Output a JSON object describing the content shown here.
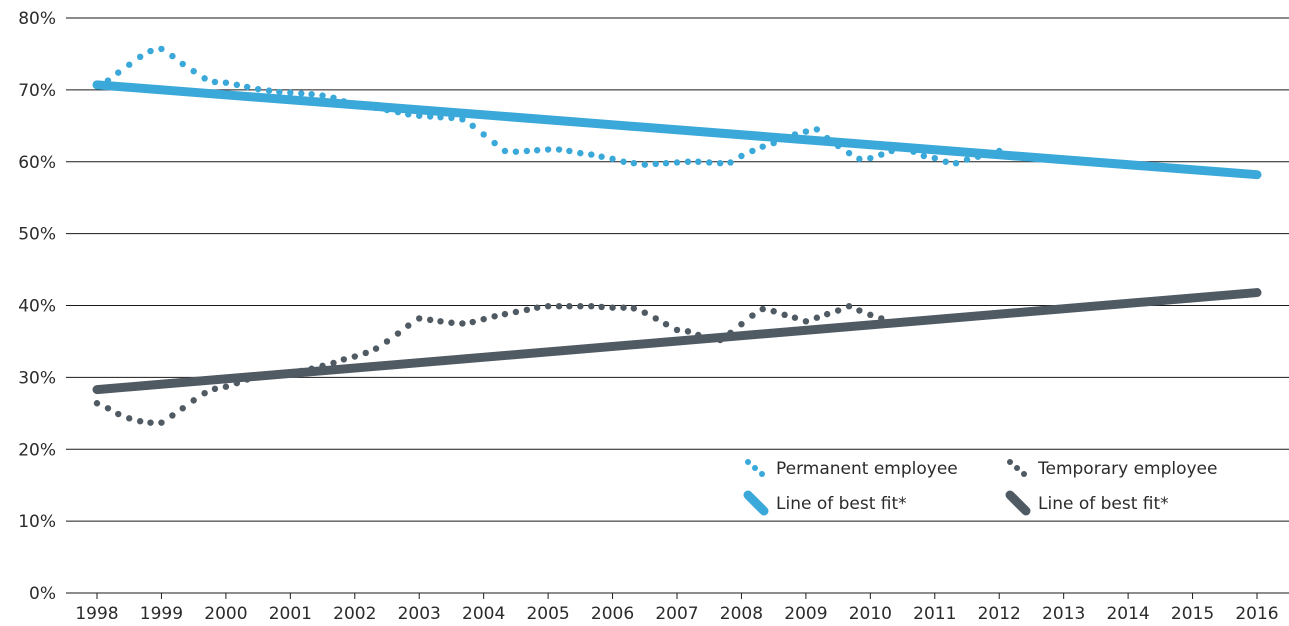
{
  "chart_data": {
    "type": "line",
    "title": "",
    "xlabel": "",
    "ylabel": "",
    "x_ticks": [
      "1998",
      "1999",
      "2000",
      "2001",
      "2002",
      "2003",
      "2004",
      "2005",
      "2006",
      "2007",
      "2008",
      "2009",
      "2010",
      "2011",
      "2012",
      "2013",
      "2014",
      "2015",
      "2016"
    ],
    "y_ticks": [
      "0%",
      "10%",
      "20%",
      "30%",
      "40%",
      "50%",
      "60%",
      "70%",
      "80%"
    ],
    "xlim": [
      1998,
      2016
    ],
    "ylim": [
      0,
      80
    ],
    "grid": "horizontal",
    "legend_position": "bottom-right",
    "colors": {
      "permanent": "#3aa8d8",
      "temporary": "#505a63",
      "grid": "#1a1a1a"
    },
    "series": [
      {
        "name": "Permanent employee",
        "style": "dotted",
        "color": "#3aa8d8",
        "points": [
          [
            1998.0,
            70.6
          ],
          [
            1998.17,
            71.3
          ],
          [
            1998.33,
            72.4
          ],
          [
            1998.5,
            73.5
          ],
          [
            1998.67,
            74.6
          ],
          [
            1998.83,
            75.4
          ],
          [
            1999.0,
            75.7
          ],
          [
            1999.17,
            74.7
          ],
          [
            1999.33,
            73.6
          ],
          [
            1999.5,
            72.6
          ],
          [
            1999.67,
            71.6
          ],
          [
            1999.83,
            71.1
          ],
          [
            2000.0,
            71.0
          ],
          [
            2000.17,
            70.7
          ],
          [
            2000.33,
            70.4
          ],
          [
            2000.5,
            70.1
          ],
          [
            2000.67,
            69.9
          ],
          [
            2000.83,
            69.7
          ],
          [
            2001.0,
            69.6
          ],
          [
            2001.17,
            69.5
          ],
          [
            2001.33,
            69.4
          ],
          [
            2001.5,
            69.2
          ],
          [
            2001.67,
            68.9
          ],
          [
            2001.83,
            68.4
          ],
          [
            2002.0,
            68.1
          ],
          [
            2002.17,
            67.8
          ],
          [
            2002.33,
            67.5
          ],
          [
            2002.5,
            67.2
          ],
          [
            2002.67,
            66.9
          ],
          [
            2002.83,
            66.6
          ],
          [
            2003.0,
            66.4
          ],
          [
            2003.17,
            66.3
          ],
          [
            2003.33,
            66.2
          ],
          [
            2003.5,
            66.1
          ],
          [
            2003.67,
            65.9
          ],
          [
            2003.83,
            65.0
          ],
          [
            2004.0,
            63.8
          ],
          [
            2004.17,
            62.6
          ],
          [
            2004.33,
            61.5
          ],
          [
            2004.5,
            61.4
          ],
          [
            2004.67,
            61.5
          ],
          [
            2004.83,
            61.6
          ],
          [
            2005.0,
            61.7
          ],
          [
            2005.17,
            61.7
          ],
          [
            2005.33,
            61.5
          ],
          [
            2005.5,
            61.2
          ],
          [
            2005.67,
            61.0
          ],
          [
            2005.83,
            60.7
          ],
          [
            2006.0,
            60.4
          ],
          [
            2006.17,
            60.0
          ],
          [
            2006.33,
            59.8
          ],
          [
            2006.5,
            59.6
          ],
          [
            2006.67,
            59.7
          ],
          [
            2006.83,
            59.8
          ],
          [
            2007.0,
            59.9
          ],
          [
            2007.17,
            60.0
          ],
          [
            2007.33,
            60.0
          ],
          [
            2007.5,
            59.9
          ],
          [
            2007.67,
            59.8
          ],
          [
            2007.83,
            59.9
          ],
          [
            2008.0,
            60.8
          ],
          [
            2008.17,
            61.5
          ],
          [
            2008.33,
            62.1
          ],
          [
            2008.5,
            62.6
          ],
          [
            2008.67,
            63.2
          ],
          [
            2008.83,
            63.8
          ],
          [
            2009.0,
            64.2
          ],
          [
            2009.17,
            64.5
          ],
          [
            2009.33,
            63.3
          ],
          [
            2009.5,
            62.2
          ],
          [
            2009.67,
            61.2
          ],
          [
            2009.83,
            60.4
          ],
          [
            2010.0,
            60.5
          ],
          [
            2010.17,
            61.0
          ],
          [
            2010.33,
            61.5
          ],
          [
            2010.5,
            62.0
          ],
          [
            2010.67,
            61.4
          ],
          [
            2010.83,
            60.8
          ],
          [
            2011.0,
            60.5
          ],
          [
            2011.17,
            60.0
          ],
          [
            2011.33,
            59.8
          ],
          [
            2011.5,
            60.3
          ],
          [
            2011.67,
            60.7
          ],
          [
            2011.83,
            61.2
          ],
          [
            2012.0,
            61.5
          ]
        ]
      },
      {
        "name": "Temporary employee",
        "style": "dotted",
        "color": "#505a63",
        "points": [
          [
            1998.0,
            26.4
          ],
          [
            1998.17,
            25.7
          ],
          [
            1998.33,
            24.9
          ],
          [
            1998.5,
            24.3
          ],
          [
            1998.67,
            23.9
          ],
          [
            1998.83,
            23.7
          ],
          [
            1999.0,
            23.7
          ],
          [
            1999.17,
            24.7
          ],
          [
            1999.33,
            25.7
          ],
          [
            1999.5,
            26.8
          ],
          [
            1999.67,
            27.8
          ],
          [
            1999.83,
            28.4
          ],
          [
            2000.0,
            28.7
          ],
          [
            2000.17,
            29.2
          ],
          [
            2000.33,
            29.7
          ],
          [
            2000.5,
            30.0
          ],
          [
            2000.67,
            30.2
          ],
          [
            2000.83,
            30.4
          ],
          [
            2001.0,
            30.6
          ],
          [
            2001.17,
            30.9
          ],
          [
            2001.33,
            31.2
          ],
          [
            2001.5,
            31.6
          ],
          [
            2001.67,
            32.0
          ],
          [
            2001.83,
            32.5
          ],
          [
            2002.0,
            32.9
          ],
          [
            2002.17,
            33.4
          ],
          [
            2002.33,
            34.0
          ],
          [
            2002.5,
            35.0
          ],
          [
            2002.67,
            36.1
          ],
          [
            2002.83,
            37.2
          ],
          [
            2003.0,
            38.2
          ],
          [
            2003.17,
            38.0
          ],
          [
            2003.33,
            37.8
          ],
          [
            2003.5,
            37.6
          ],
          [
            2003.67,
            37.5
          ],
          [
            2003.83,
            37.7
          ],
          [
            2004.0,
            38.1
          ],
          [
            2004.17,
            38.5
          ],
          [
            2004.33,
            38.8
          ],
          [
            2004.5,
            39.1
          ],
          [
            2004.67,
            39.4
          ],
          [
            2004.83,
            39.7
          ],
          [
            2005.0,
            39.9
          ],
          [
            2005.17,
            39.9
          ],
          [
            2005.33,
            39.9
          ],
          [
            2005.5,
            39.9
          ],
          [
            2005.67,
            39.9
          ],
          [
            2005.83,
            39.8
          ],
          [
            2006.0,
            39.7
          ],
          [
            2006.17,
            39.7
          ],
          [
            2006.33,
            39.6
          ],
          [
            2006.5,
            39.0
          ],
          [
            2006.67,
            38.2
          ],
          [
            2006.83,
            37.4
          ],
          [
            2007.0,
            36.6
          ],
          [
            2007.17,
            36.4
          ],
          [
            2007.33,
            35.9
          ],
          [
            2007.5,
            35.5
          ],
          [
            2007.67,
            35.2
          ],
          [
            2007.83,
            36.2
          ],
          [
            2008.0,
            37.4
          ],
          [
            2008.17,
            38.6
          ],
          [
            2008.33,
            39.5
          ],
          [
            2008.5,
            39.2
          ],
          [
            2008.67,
            38.7
          ],
          [
            2008.83,
            38.3
          ],
          [
            2009.0,
            37.8
          ],
          [
            2009.17,
            38.3
          ],
          [
            2009.33,
            38.8
          ],
          [
            2009.5,
            39.3
          ],
          [
            2009.67,
            39.9
          ],
          [
            2009.83,
            39.3
          ],
          [
            2010.0,
            38.7
          ],
          [
            2010.17,
            38.2
          ],
          [
            2010.33,
            37.7
          ]
        ]
      },
      {
        "name": "Line of best fit*",
        "style": "solid",
        "color": "#3aa8d8",
        "points": [
          [
            1998,
            70.7
          ],
          [
            2016,
            58.2
          ]
        ]
      },
      {
        "name": "Line of best fit*",
        "style": "solid",
        "color": "#505a63",
        "points": [
          [
            1998,
            28.3
          ],
          [
            2016,
            41.8
          ]
        ]
      }
    ],
    "legend": [
      {
        "label": "Permanent employee",
        "kind": "dots",
        "color": "#3aa8d8"
      },
      {
        "label": "Temporary employee",
        "kind": "dots",
        "color": "#505a63"
      },
      {
        "label": "Line of best fit*",
        "kind": "line",
        "color": "#3aa8d8"
      },
      {
        "label": "Line of best fit*",
        "kind": "line",
        "color": "#505a63"
      }
    ]
  }
}
